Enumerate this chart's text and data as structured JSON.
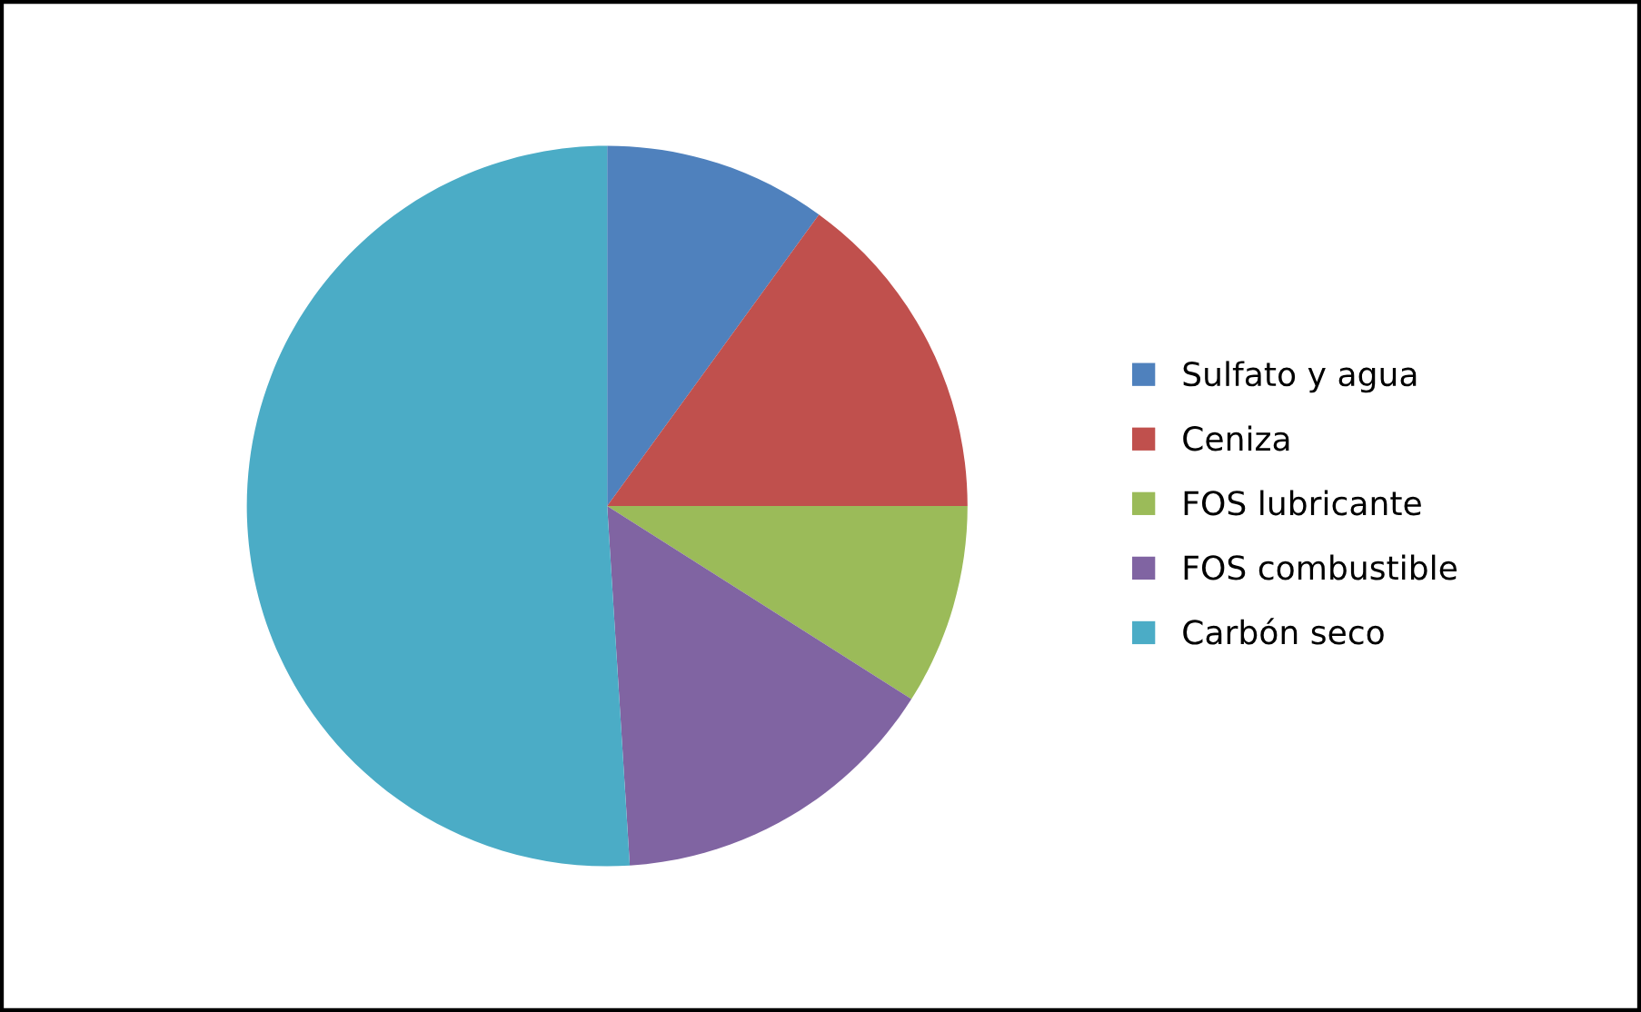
{
  "chart_data": {
    "type": "pie",
    "categories": [
      "Sulfato y agua",
      "Ceniza",
      "FOS lubricante",
      "FOS combustible",
      "Carbón seco"
    ],
    "values": [
      10,
      15,
      9,
      15,
      51
    ],
    "colors": [
      "#4f81bd",
      "#c0504d",
      "#9bbb59",
      "#8064a2",
      "#4bacc6"
    ],
    "legend": "right"
  }
}
